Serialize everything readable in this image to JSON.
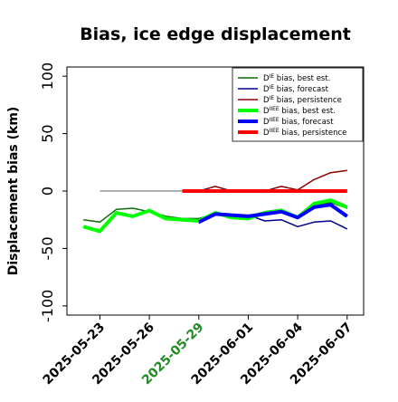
{
  "chart_data": {
    "type": "line",
    "title": "Bias, ice edge displacement",
    "ylabel": "Displacement bias (km)",
    "xlabel": "",
    "ylim": [
      -108,
      108
    ],
    "xlim": [
      "2025-05-21",
      "2025-06-08"
    ],
    "yticks": [
      100,
      50,
      0,
      -50,
      -100
    ],
    "xticks": [
      "2025-05-23",
      "2025-05-26",
      "2025-05-29",
      "2025-06-01",
      "2025-06-04",
      "2025-06-07"
    ],
    "highlight_tick": "2025-05-29",
    "highlight_color": "#228B22",
    "zero_line": {
      "x_start": "2025-05-23",
      "x_end": "2025-06-07",
      "y": 0,
      "color": "#808080"
    },
    "legend_position": "upper-right",
    "series": [
      {
        "name": "D^IE bias, best est.",
        "base": "D",
        "sup": "IE",
        "text": " bias, best est.",
        "color": "#0b6b0b",
        "width": 1.5,
        "x": [
          "2025-05-22",
          "2025-05-23",
          "2025-05-24",
          "2025-05-25",
          "2025-05-26",
          "2025-05-27",
          "2025-05-28",
          "2025-05-29",
          "2025-05-30",
          "2025-05-31",
          "2025-06-01",
          "2025-06-02",
          "2025-06-03",
          "2025-06-04",
          "2025-06-05",
          "2025-06-06",
          "2025-06-07"
        ],
        "y": [
          -25,
          -27,
          -16,
          -15,
          -18,
          -22,
          -24,
          -24,
          -20,
          -21,
          -22,
          -18,
          -16,
          -22,
          -12,
          -10,
          -15
        ]
      },
      {
        "name": "D^IE bias, forecast",
        "base": "D",
        "sup": "IE",
        "text": " bias, forecast",
        "color": "#00008b",
        "width": 1.5,
        "x": [
          "2025-05-29",
          "2025-05-30",
          "2025-05-31",
          "2025-06-01",
          "2025-06-02",
          "2025-06-03",
          "2025-06-04",
          "2025-06-05",
          "2025-06-06",
          "2025-06-07"
        ],
        "y": [
          -28,
          -20,
          -21,
          -21,
          -26,
          -25,
          -31,
          -27,
          -26,
          -33
        ]
      },
      {
        "name": "D^IE bias, persistence",
        "base": "D",
        "sup": "IE",
        "text": " bias, persistence",
        "color": "#8b0000",
        "width": 1.5,
        "x": [
          "2025-05-28",
          "2025-05-29",
          "2025-05-30",
          "2025-05-31",
          "2025-06-01",
          "2025-06-02",
          "2025-06-03",
          "2025-06-04",
          "2025-06-05",
          "2025-06-06",
          "2025-06-07"
        ],
        "y": [
          0,
          0,
          4,
          0,
          -1,
          0,
          4,
          1,
          10,
          16,
          18
        ]
      },
      {
        "name": "D^IIEE bias, best est.",
        "base": "D",
        "sup": "IIEE",
        "text": " bias, best est.",
        "color": "#00ff00",
        "width": 4,
        "x": [
          "2025-05-22",
          "2025-05-23",
          "2025-05-24",
          "2025-05-25",
          "2025-05-26",
          "2025-05-27",
          "2025-05-28",
          "2025-05-29",
          "2025-05-30",
          "2025-05-31",
          "2025-06-01",
          "2025-06-02",
          "2025-06-03",
          "2025-06-04",
          "2025-06-05",
          "2025-06-06",
          "2025-06-07"
        ],
        "y": [
          -31,
          -35,
          -19,
          -22,
          -17,
          -24,
          -25,
          -26,
          -19,
          -23,
          -24,
          -19,
          -17,
          -23,
          -11,
          -8,
          -14
        ]
      },
      {
        "name": "D^IIEE bias, forecast",
        "base": "D",
        "sup": "IIEE",
        "text": " bias, forecast",
        "color": "#0000ff",
        "width": 4,
        "x": [
          "2025-05-29",
          "2025-05-30",
          "2025-05-31",
          "2025-06-01",
          "2025-06-02",
          "2025-06-03",
          "2025-06-04",
          "2025-06-05",
          "2025-06-06",
          "2025-06-07"
        ],
        "y": [
          -27,
          -20,
          -21,
          -22,
          -20,
          -18,
          -23,
          -14,
          -12,
          -22
        ]
      },
      {
        "name": "D^IIEE bias, persistence",
        "base": "D",
        "sup": "IIEE",
        "text": " bias, persistence",
        "color": "#ff0000",
        "width": 4,
        "x": [
          "2025-05-28",
          "2025-05-29",
          "2025-05-30",
          "2025-05-31",
          "2025-06-01",
          "2025-06-02",
          "2025-06-03",
          "2025-06-04",
          "2025-06-05",
          "2025-06-06",
          "2025-06-07"
        ],
        "y": [
          0,
          0,
          0,
          0,
          0,
          0,
          0,
          0,
          0,
          0,
          0
        ]
      }
    ]
  }
}
